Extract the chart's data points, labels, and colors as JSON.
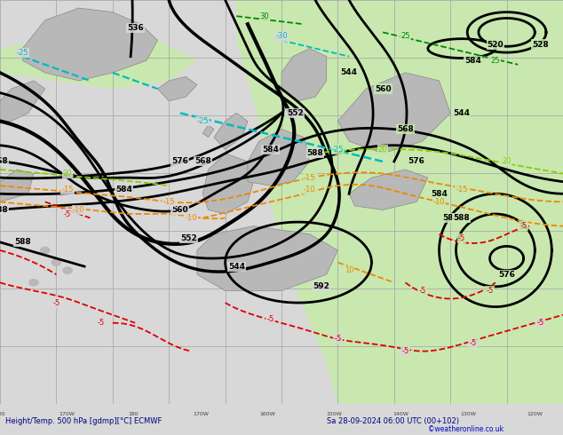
{
  "title": "Height/Temp. 500 hPa [gdmp][°C] ECMWF",
  "date_str": "Sa 28-09-2024 06:00 UTC (00+102)",
  "copyright": "©weatheronline.co.uk",
  "fig_width": 6.34,
  "fig_height": 4.9,
  "dpi": 100,
  "bg_ocean_color": "#d8d8d8",
  "bg_warm_color": "#c8e8b0",
  "land_color": "#b8b8b8",
  "land_edge_color": "#888888",
  "grid_color": "#aaaaaa",
  "bottom_bar_color": "#f0f0f0",
  "text_color": "#000080",
  "copyright_color": "#0000cc"
}
